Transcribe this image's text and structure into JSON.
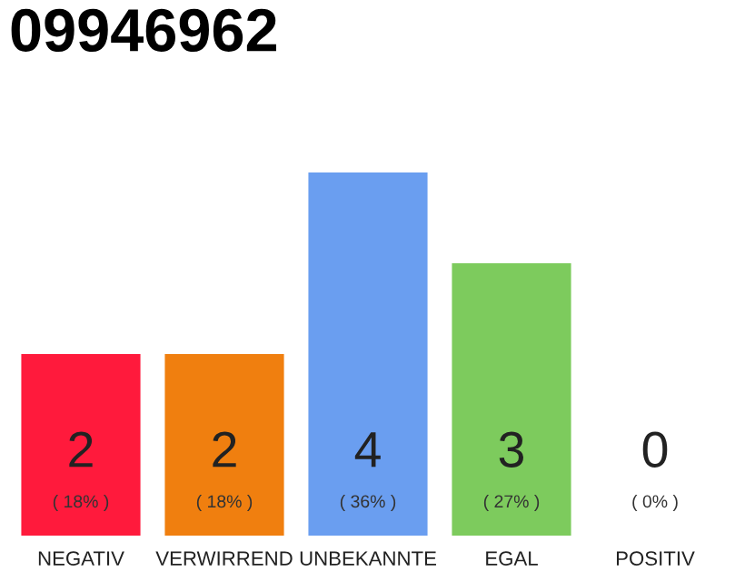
{
  "chart_data": {
    "type": "bar",
    "title": "09946962",
    "categories": [
      "NEGATIV",
      "VERWIRREND",
      "UNBEKANNTE",
      "EGAL",
      "POSITIV"
    ],
    "values": [
      2,
      2,
      4,
      3,
      0
    ],
    "colors": [
      "#ff1a3c",
      "#f07f0f",
      "#6a9ef0",
      "#7dcb5d",
      "#aaaaaa"
    ],
    "data_labels": true,
    "annotations": [
      "( 18% )",
      "( 18% )",
      "( 36% )",
      "( 27% )",
      "( 0% )"
    ],
    "grid": false,
    "legend": false
  }
}
